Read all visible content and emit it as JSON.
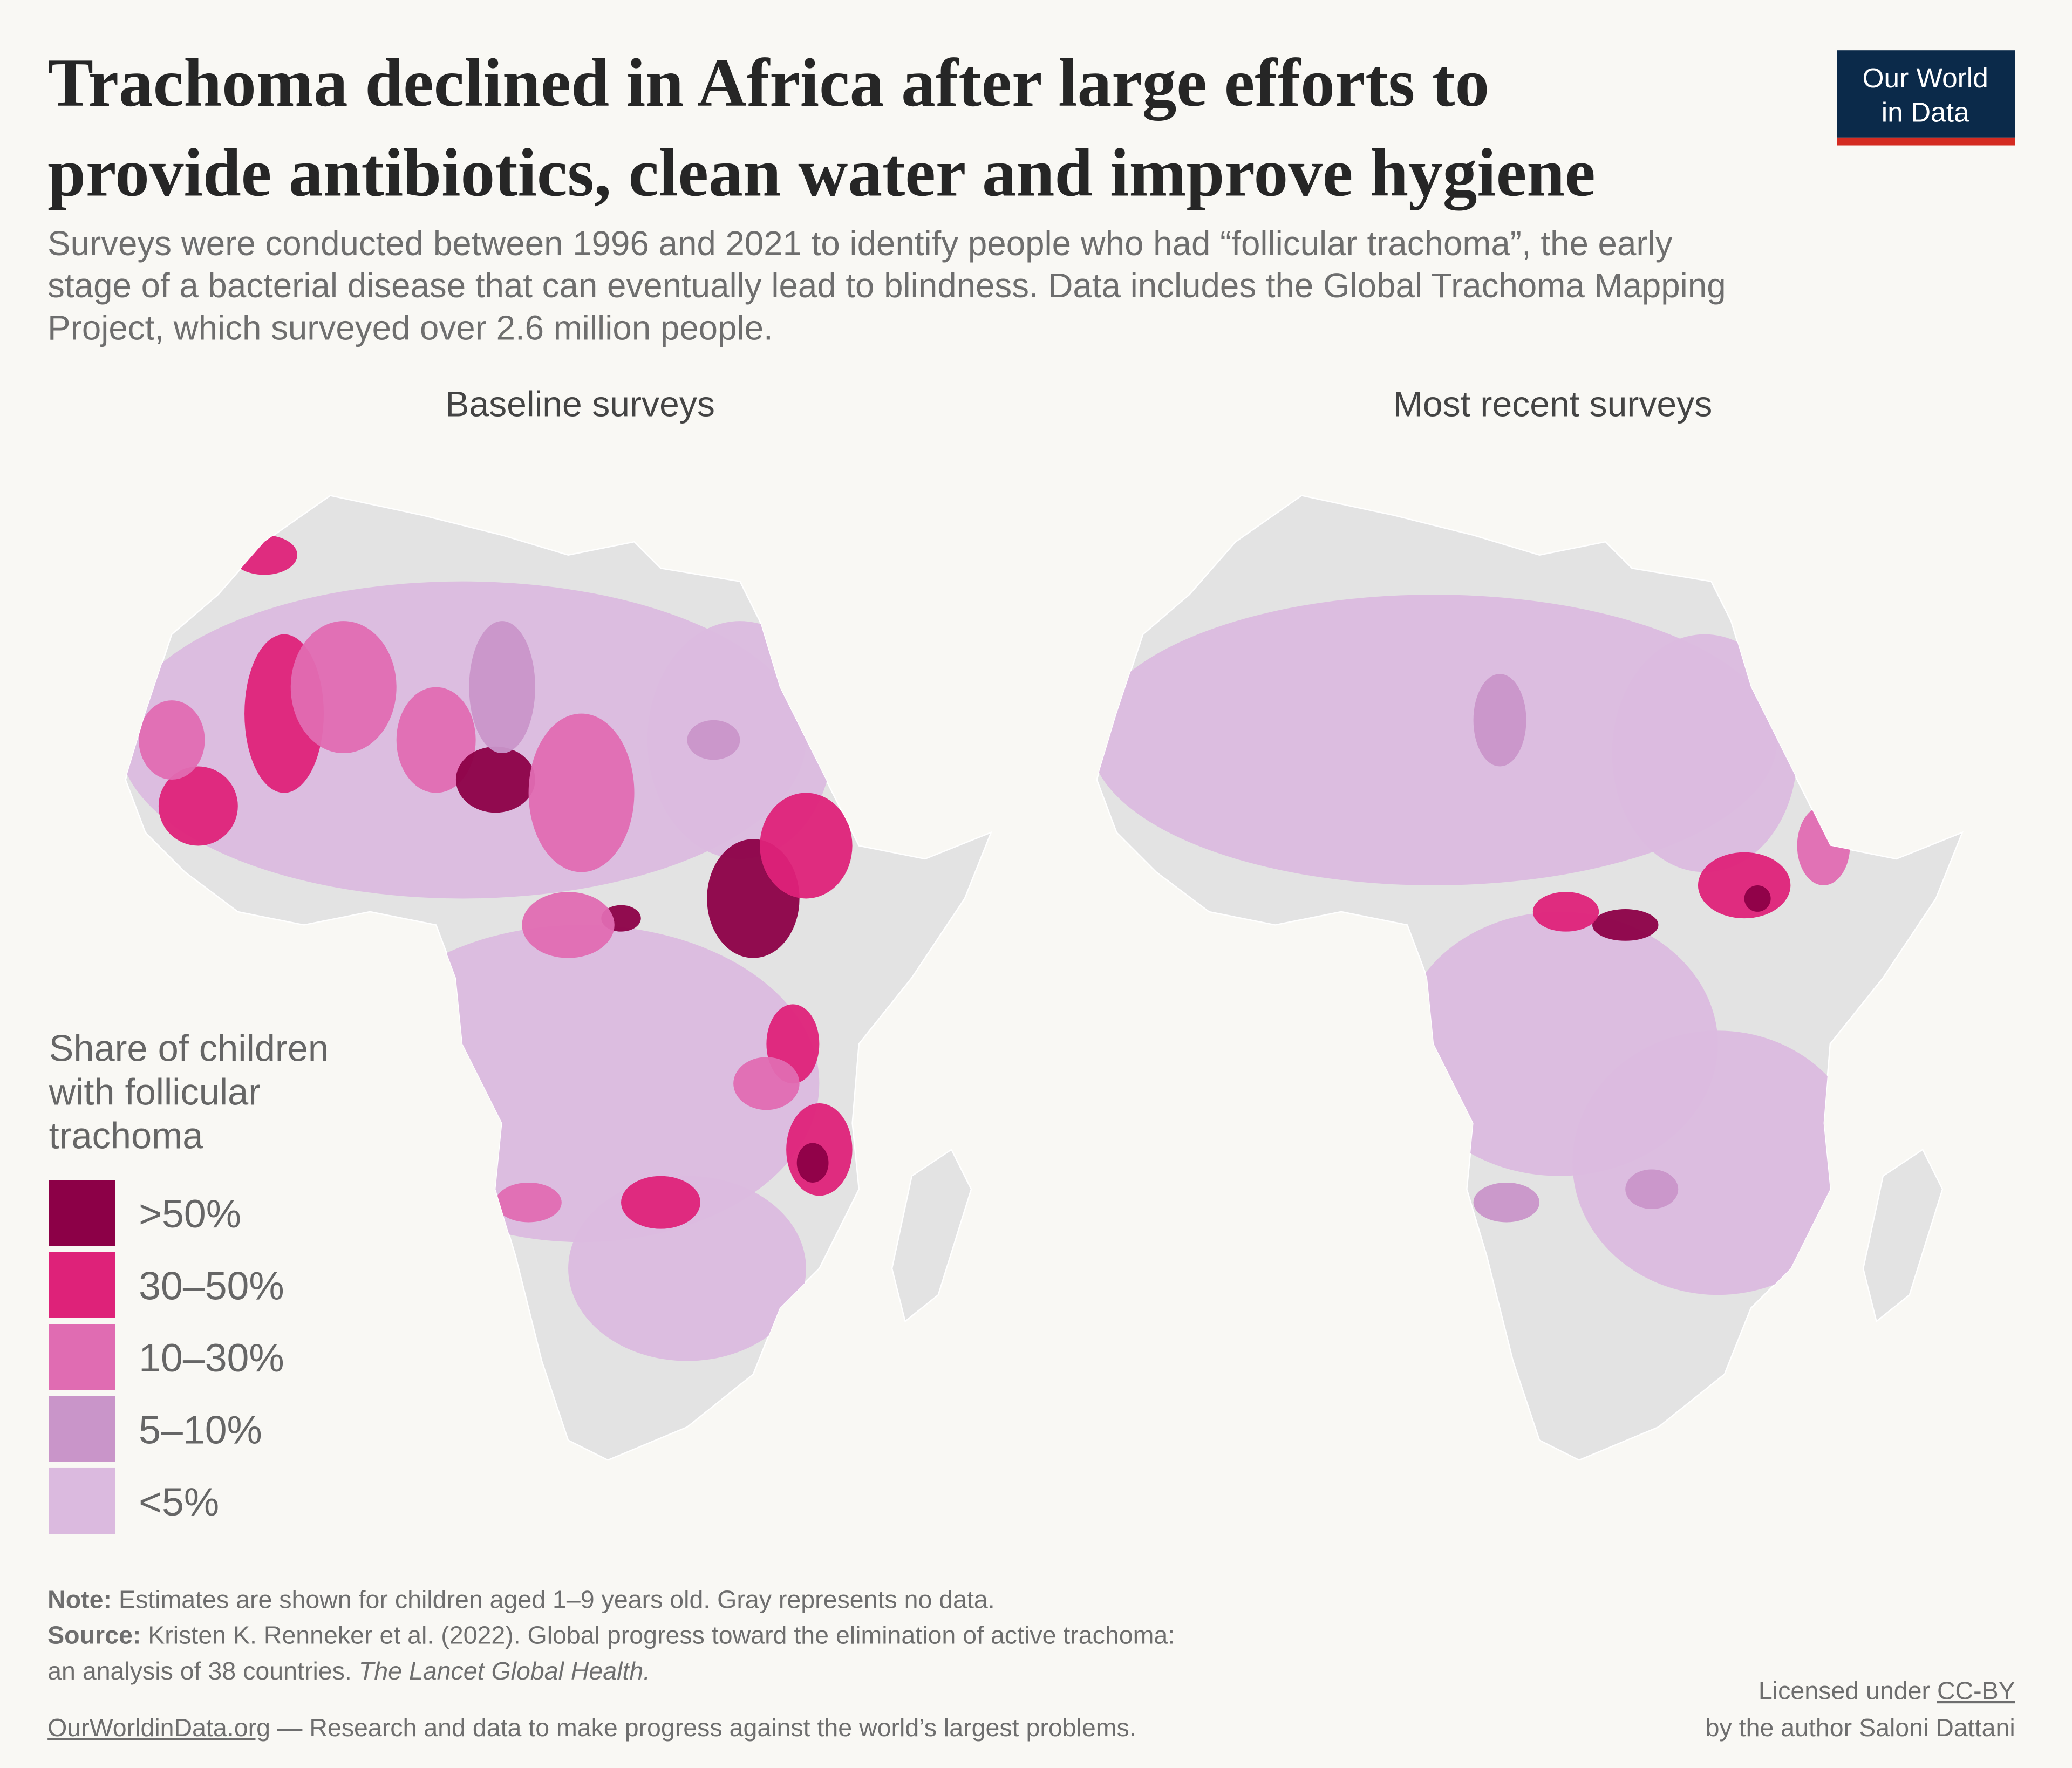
{
  "header": {
    "title": [
      "Trachoma declined in Africa after large efforts to",
      "provide antibiotics, clean water and improve hygiene"
    ],
    "subtitle": [
      "Surveys were conducted between 1996 and 2021 to identify people who had “follicular trachoma”, the early",
      "stage of a bacterial disease that can eventually lead to blindness. Data includes the Global Trachoma Mapping",
      "Project, which surveyed over 2.6 million people."
    ],
    "logo": [
      "Our World",
      "in Data"
    ]
  },
  "maps": [
    {
      "title": "Baseline surveys"
    },
    {
      "title": "Most recent surveys"
    }
  ],
  "legend": {
    "title": [
      "Share of children",
      "with follicular",
      "trachoma"
    ],
    "items": [
      {
        "label": ">50%",
        "color": "#8c0047"
      },
      {
        "label": "30–50%",
        "color": "#de2279"
      },
      {
        "label": "10–30%",
        "color": "#e06cb2"
      },
      {
        "label": "5–10%",
        "color": "#c995c9"
      },
      {
        "label": "<5%",
        "color": "#dbbadf"
      }
    ]
  },
  "footer": {
    "note": {
      "label": "Note:",
      "text": "Estimates are shown for children aged 1–9 years old. Gray represents no data."
    },
    "source": {
      "label": "Source:",
      "lines": [
        "Kristen K. Renneker et al. (2022). Global progress toward the elimination of active trachoma:",
        "an analysis of 38 countries."
      ],
      "journal": "The Lancet Global Health."
    },
    "site": "OurWorldinData.org",
    "tagline": "— Research and data to make progress against the world’s largest problems.",
    "license": {
      "prefix": "Licensed under",
      "link": "CC-BY",
      "author": "by the author Saloni Dattani"
    }
  }
}
